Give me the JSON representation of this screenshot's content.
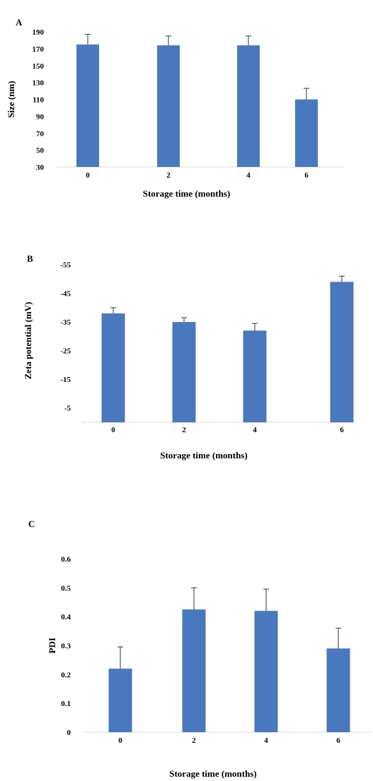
{
  "chart_data": [
    {
      "panel": "A",
      "type": "bar",
      "categories": [
        "0",
        "2",
        "4",
        "6"
      ],
      "values": [
        175,
        174,
        174,
        110
      ],
      "errors": [
        12,
        11,
        11,
        13
      ],
      "ylabel": "Size (nm)",
      "xlabel": "Storage time (months)",
      "yticks": [
        "190",
        "170",
        "150",
        "130",
        "110",
        "90",
        "70",
        "50",
        "30"
      ],
      "ylim": [
        30,
        190
      ],
      "reversed": false,
      "color": "#4a78be"
    },
    {
      "panel": "B",
      "type": "bar",
      "categories": [
        "0",
        "2",
        "4",
        "6"
      ],
      "values": [
        -38,
        -35,
        -32,
        -49
      ],
      "errors": [
        2,
        1.5,
        2.5,
        2
      ],
      "ylabel": "Zeta potential (mV)",
      "xlabel": "Storage time (months)",
      "yticks": [
        "-55",
        "-45",
        "-35",
        "-25",
        "-15",
        "-5"
      ],
      "ylim": [
        0,
        -57
      ],
      "reversed": true,
      "color": "#4a78be"
    },
    {
      "panel": "C",
      "type": "bar",
      "categories": [
        "0",
        "2",
        "4",
        "6"
      ],
      "values": [
        0.22,
        0.425,
        0.42,
        0.29
      ],
      "errors": [
        0.075,
        0.075,
        0.075,
        0.07
      ],
      "ylabel": "PDI",
      "xlabel": "Storage time (months)",
      "yticks": [
        "0.6",
        "0.5",
        "0.4",
        "0.3",
        "0.2",
        "0.1",
        "0"
      ],
      "ylim": [
        0,
        0.6
      ],
      "reversed": false,
      "color": "#4a78be"
    }
  ]
}
